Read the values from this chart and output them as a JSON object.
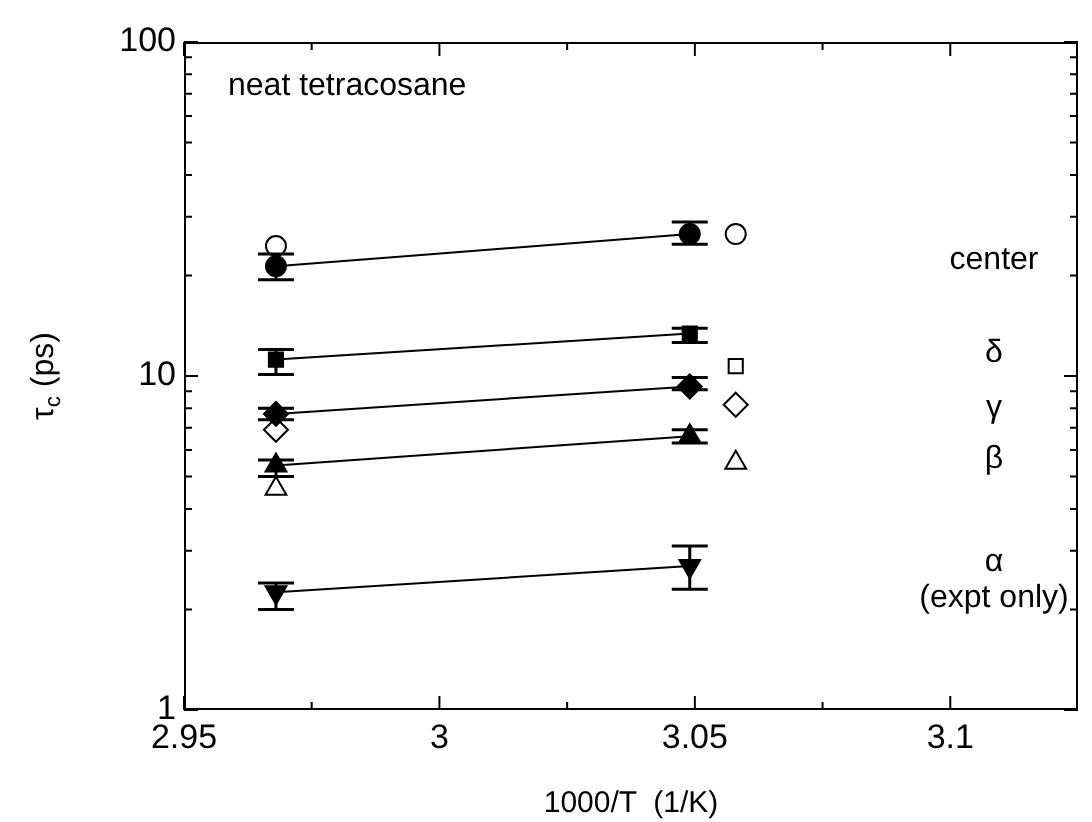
{
  "chart_data": {
    "type": "line",
    "xlabel": "1000/T  (1/K)",
    "ylabel": "τ$_{c}$ (ps)",
    "annotations": [
      "neat tetracosane"
    ],
    "xlim": [
      2.95,
      3.125
    ],
    "xticks": [
      2.95,
      {
        "value": 2.975,
        "label": null
      },
      3,
      {
        "value": 3.025,
        "label": null
      },
      3.05,
      {
        "value": 3.075,
        "label": null
      },
      3.1
    ],
    "ylim": [
      1,
      100
    ],
    "log": "y",
    "yticks": [
      1,
      {
        "value": 2,
        "label": null
      },
      {
        "value": 3,
        "label": null
      },
      {
        "value": 4,
        "label": null
      },
      {
        "value": 5,
        "label": null
      },
      {
        "value": 6,
        "label": null
      },
      {
        "value": 7,
        "label": null
      },
      {
        "value": 8,
        "label": null
      },
      {
        "value": 9,
        "label": null
      },
      10,
      {
        "value": 20,
        "label": null
      },
      {
        "value": 30,
        "label": null
      },
      {
        "value": 40,
        "label": null
      },
      {
        "value": 50,
        "label": null
      },
      {
        "value": 60,
        "label": null
      },
      {
        "value": 70,
        "label": null
      },
      {
        "value": 80,
        "label": null
      },
      {
        "value": 90,
        "label": null
      },
      100
    ],
    "grid": false,
    "legend": "right",
    "line_style": "solid",
    "series": [
      {
        "name": "center",
        "marker": "circle",
        "color": "#000000",
        "x": [
          2.968,
          3.049
        ],
        "values": [
          21.3,
          26.6
        ],
        "errors": [
          [
            19.4,
            23.2
          ],
          [
            24.8,
            28.9
          ]
        ]
      },
      {
        "name": "δ",
        "marker": "square",
        "color": "#000000",
        "x": [
          2.968,
          3.049
        ],
        "values": [
          11.2,
          13.4
        ],
        "errors": [
          [
            10.1,
            12.0
          ],
          [
            12.6,
            13.9
          ]
        ]
      },
      {
        "name": "γ",
        "marker": "diamond",
        "color": "#000000",
        "x": [
          2.968,
          3.049
        ],
        "values": [
          7.7,
          9.3
        ],
        "errors": [
          [
            7.4,
            8.0
          ],
          [
            9.1,
            9.9
          ]
        ]
      },
      {
        "name": "β",
        "marker": "triangle",
        "color": "#000000",
        "x": [
          2.968,
          3.049
        ],
        "values": [
          5.4,
          6.6
        ],
        "errors": [
          [
            5.0,
            5.6
          ],
          [
            6.3,
            6.9
          ]
        ]
      },
      {
        "name": "α (expt only)",
        "marker": "triangle-down",
        "color": "#000000",
        "x": [
          2.968,
          3.049
        ],
        "values": [
          2.25,
          2.7
        ],
        "errors": [
          [
            2.0,
            2.4
          ],
          [
            2.3,
            3.1
          ]
        ]
      },
      {
        "type": "scatter",
        "marker": "circle",
        "color": "#000000",
        "x": [
          2.968,
          3.058
        ],
        "values": [
          24.5,
          26.6
        ]
      },
      {
        "type": "scatter",
        "marker": "square",
        "color": "#000000",
        "x": [
          3.058
        ],
        "values": [
          10.7
        ]
      },
      {
        "type": "scatter",
        "marker": "diamond",
        "color": "#000000",
        "x": [
          2.968,
          3.058
        ],
        "values": [
          6.9,
          8.2
        ]
      },
      {
        "type": "scatter",
        "marker": "triangle",
        "color": "#000000",
        "x": [
          2.968,
          3.058
        ],
        "values": [
          4.6,
          5.5
        ]
      }
    ]
  }
}
